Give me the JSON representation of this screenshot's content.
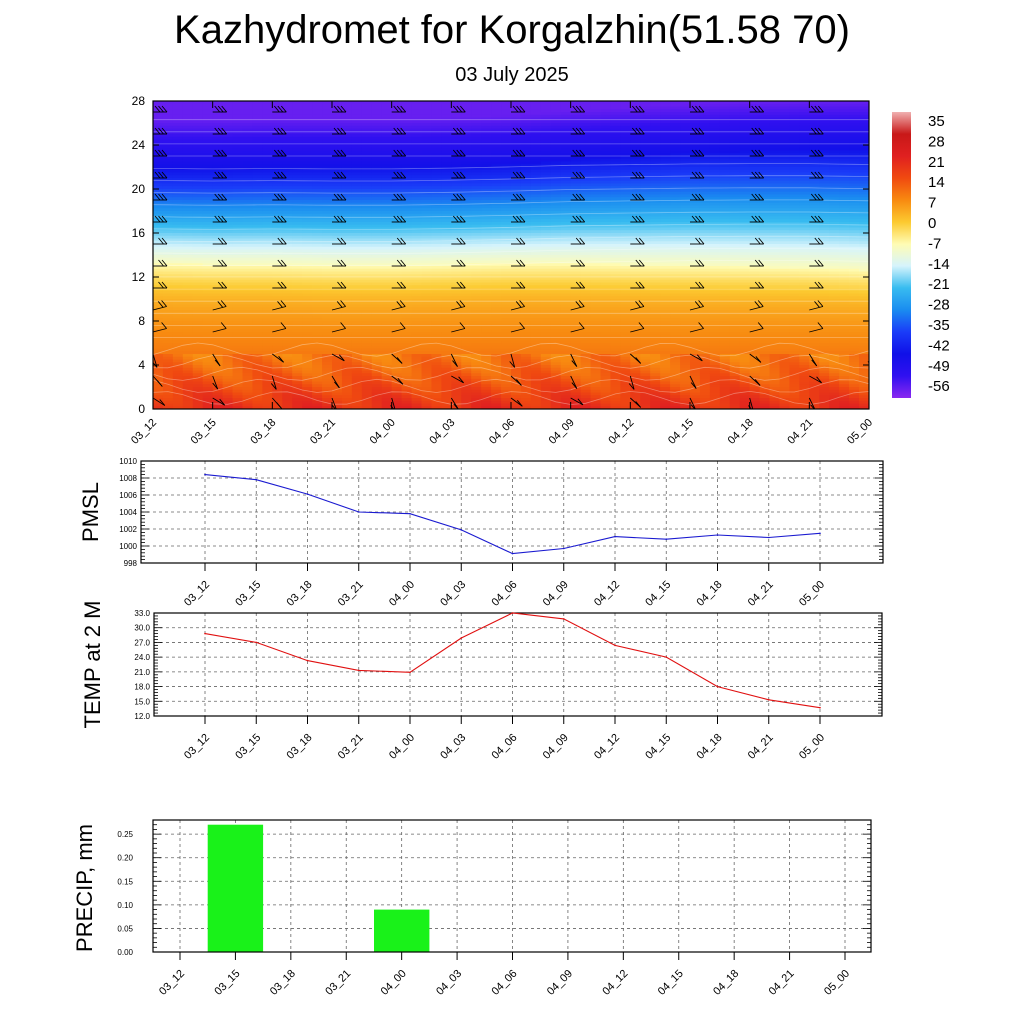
{
  "header": {
    "title": "Kazhydromet for Korgalzhin(51.58 70)",
    "date": "03 July 2025"
  },
  "chart_data": [
    {
      "type": "heatmap",
      "name": "vertical-temperature-section",
      "x": [
        "03_12",
        "03_15",
        "03_18",
        "03_21",
        "04_00",
        "04_03",
        "04_06",
        "04_09",
        "04_12",
        "04_15",
        "04_18",
        "04_21",
        "05_00"
      ],
      "ylim": [
        0,
        28
      ],
      "yticks": [
        0,
        4,
        8,
        12,
        16,
        20,
        24,
        28
      ],
      "freezing_level": [
        13.2,
        13.1,
        13.1,
        13.0,
        13.0,
        13.1,
        13.2,
        13.2,
        13.1,
        13.0,
        12.9,
        12.8,
        12.6
      ],
      "tropopause_level": [
        21.8,
        21.8,
        21.9,
        21.9,
        21.9,
        22.0,
        22.2,
        22.6,
        22.9,
        23.2,
        23.4,
        23.5,
        23.5
      ],
      "colorbar": {
        "labels": [
          "35",
          "28",
          "21",
          "14",
          "7",
          "0",
          "-7",
          "-14",
          "-21",
          "-28",
          "-35",
          "-42",
          "-49",
          "-56"
        ],
        "stops": [
          "#f0b0b0",
          "#c81818",
          "#e02020",
          "#f04a10",
          "#f88a10",
          "#fcca30",
          "#fffcb4",
          "#d6f4fc",
          "#38bcf0",
          "#1a8cf0",
          "#1a3cf8",
          "#1010e8",
          "#3010f0",
          "#8a28f0"
        ]
      }
    },
    {
      "type": "line",
      "name": "pmsl",
      "ylabel": "PMSL",
      "x": [
        "03_12",
        "03_15",
        "03_18",
        "03_21",
        "04_00",
        "04_03",
        "04_06",
        "04_09",
        "04_12",
        "04_15",
        "04_18",
        "04_21",
        "05_00"
      ],
      "values": [
        1008.4,
        1007.8,
        1006.1,
        1004.0,
        1003.8,
        1001.9,
        999.1,
        999.7,
        1001.1,
        1000.8,
        1001.3,
        1001.0,
        1001.5
      ],
      "ylim": [
        998,
        1010
      ],
      "yticks": [
        "998",
        "1000",
        "1002",
        "1004",
        "1006",
        "1008",
        "1010"
      ],
      "color": "#1a1ad0"
    },
    {
      "type": "line",
      "name": "temp-2m",
      "ylabel": "TEMP at 2 M",
      "x": [
        "03_12",
        "03_15",
        "03_18",
        "03_21",
        "04_00",
        "04_03",
        "04_06",
        "04_09",
        "04_12",
        "04_15",
        "04_18",
        "04_21",
        "05_00"
      ],
      "values": [
        28.8,
        27.0,
        23.3,
        21.3,
        20.9,
        27.9,
        33.0,
        31.8,
        26.4,
        24.0,
        18.0,
        15.3,
        13.7
      ],
      "ylim": [
        12,
        33
      ],
      "yticks": [
        "12.0",
        "15.0",
        "18.0",
        "21.0",
        "24.0",
        "27.0",
        "30.0",
        "33.0"
      ],
      "color": "#e01010"
    },
    {
      "type": "bar",
      "name": "precip",
      "ylabel": "PRECIP, mm",
      "categories": [
        "03_12",
        "03_15",
        "03_18",
        "03_21",
        "04_00",
        "04_03",
        "04_06",
        "04_09",
        "04_12",
        "04_15",
        "04_18",
        "04_21",
        "05_00"
      ],
      "values": [
        0,
        0.27,
        0,
        0,
        0.09,
        0,
        0,
        0,
        0,
        0,
        0,
        0,
        0
      ],
      "ylim": [
        0,
        0.28
      ],
      "yticks": [
        "0.00",
        "0.05",
        "0.10",
        "0.15",
        "0.20",
        "0.25"
      ],
      "color": "#19f219"
    }
  ]
}
